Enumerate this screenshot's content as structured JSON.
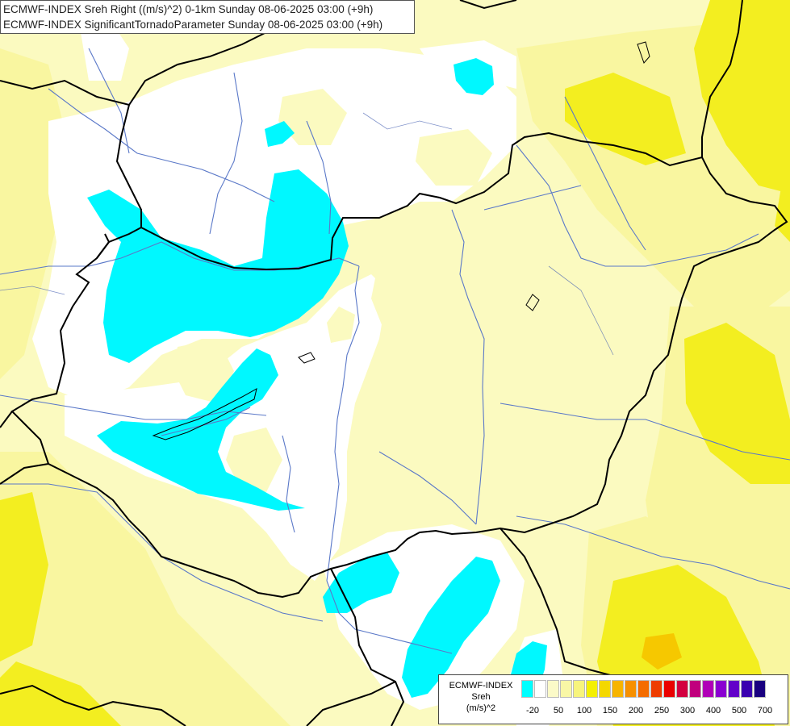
{
  "header": {
    "line1": "ECMWF-INDEX Sreh Right ((m/s)^2) 0-1km Sunday 08-06-2025 03:00 (+9h)",
    "line2": "ECMWF-INDEX SignificantTornadoParameter Sunday 08-06-2025 03:00 (+9h)"
  },
  "legend": {
    "line1": "ECMWF-INDEX",
    "line2": "Sreh",
    "line3": "(m/s)^2",
    "colors": [
      "#00ffff",
      "#ffffff",
      "#fbfac8",
      "#f9f7a6",
      "#f7f47d",
      "#f4f000",
      "#f4d800",
      "#f7b400",
      "#f79000",
      "#f46c00",
      "#ee3c00",
      "#ea0000",
      "#d3003f",
      "#c0007d",
      "#b000b7",
      "#8a00d1",
      "#6200c9",
      "#3a00b0",
      "#1a0080"
    ],
    "ticks": [
      "-20",
      "50",
      "100",
      "150",
      "200",
      "250",
      "300",
      "400",
      "500",
      "700"
    ]
  },
  "colors": {
    "cyan": "#00ffff",
    "white": "#ffffff",
    "pale_yellow": "#fbfac8",
    "light_yellow": "#f9f7a6",
    "yellow": "#f4f000",
    "border": "#000000",
    "river": "#4a70c8"
  }
}
